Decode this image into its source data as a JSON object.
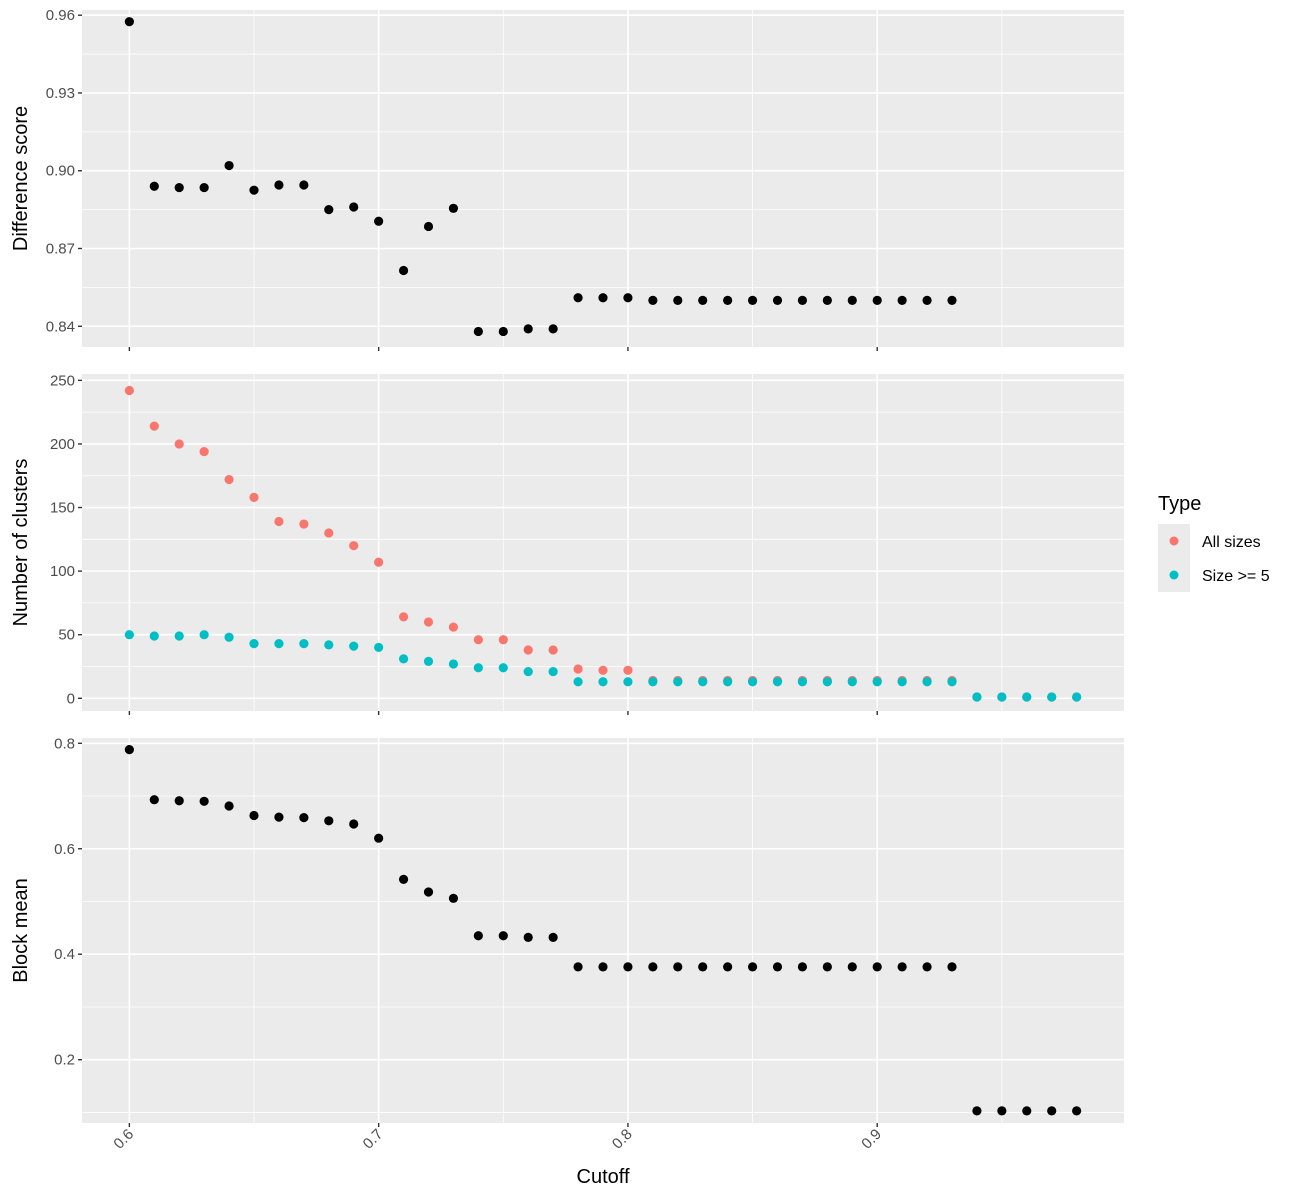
{
  "chart_data": {
    "type": "scatter",
    "xlabel": "Cutoff",
    "x_ticks": [
      "0.6",
      "0.7",
      "0.8",
      "0.9"
    ],
    "xlim": [
      0.581,
      0.999
    ],
    "grid": true,
    "legend": {
      "title": "Type",
      "placement": "right",
      "entries": [
        {
          "label": "All sizes",
          "color": "#F8766D"
        },
        {
          "label": "Size >= 5",
          "color": "#00BFC4"
        }
      ]
    },
    "panels": [
      {
        "ylabel": "Difference score",
        "ylim": [
          0.832,
          0.962
        ],
        "y_ticks": [
          "0.84",
          "0.87",
          "0.90",
          "0.93",
          "0.96"
        ],
        "series": [
          {
            "color": "#000000",
            "x": [
              0.6,
              0.61,
              0.62,
              0.63,
              0.64,
              0.65,
              0.66,
              0.67,
              0.68,
              0.69,
              0.7,
              0.71,
              0.72,
              0.73,
              0.74,
              0.75,
              0.76,
              0.77,
              0.78,
              0.79,
              0.8,
              0.81,
              0.82,
              0.83,
              0.84,
              0.85,
              0.86,
              0.87,
              0.88,
              0.89,
              0.9,
              0.91,
              0.92,
              0.93
            ],
            "y": [
              0.9575,
              0.894,
              0.8935,
              0.8935,
              0.902,
              0.8925,
              0.8945,
              0.8945,
              0.885,
              0.886,
              0.8805,
              0.8615,
              0.8785,
              0.8855,
              0.838,
              0.838,
              0.839,
              0.839,
              0.851,
              0.851,
              0.851,
              0.85,
              0.85,
              0.85,
              0.85,
              0.85,
              0.85,
              0.85,
              0.85,
              0.85,
              0.85,
              0.85,
              0.85,
              0.85
            ]
          }
        ]
      },
      {
        "ylabel": "Number of clusters",
        "ylim": [
          -10,
          255
        ],
        "y_ticks": [
          "0",
          "50",
          "100",
          "150",
          "200",
          "250"
        ],
        "series": [
          {
            "name": "All sizes",
            "color": "#F8766D",
            "x": [
              0.6,
              0.61,
              0.62,
              0.63,
              0.64,
              0.65,
              0.66,
              0.67,
              0.68,
              0.69,
              0.7,
              0.71,
              0.72,
              0.73,
              0.74,
              0.75,
              0.76,
              0.77,
              0.78,
              0.79,
              0.8,
              0.81,
              0.82,
              0.83,
              0.84,
              0.85,
              0.86,
              0.87,
              0.88,
              0.89,
              0.9,
              0.91,
              0.92,
              0.93,
              0.94,
              0.95,
              0.96,
              0.97,
              0.98
            ],
            "y": [
              242,
              214,
              200,
              194,
              172,
              158,
              139,
              137,
              130,
              120,
              107,
              64,
              60,
              56,
              46,
              46,
              38,
              38,
              23,
              22,
              22,
              14,
              14,
              14,
              14,
              14,
              14,
              14,
              14,
              14,
              14,
              14,
              14,
              14,
              1,
              1,
              1,
              1,
              1
            ]
          },
          {
            "name": "Size >= 5",
            "color": "#00BFC4",
            "x": [
              0.6,
              0.61,
              0.62,
              0.63,
              0.64,
              0.65,
              0.66,
              0.67,
              0.68,
              0.69,
              0.7,
              0.71,
              0.72,
              0.73,
              0.74,
              0.75,
              0.76,
              0.77,
              0.78,
              0.79,
              0.8,
              0.81,
              0.82,
              0.83,
              0.84,
              0.85,
              0.86,
              0.87,
              0.88,
              0.89,
              0.9,
              0.91,
              0.92,
              0.93,
              0.94,
              0.95,
              0.96,
              0.97,
              0.98
            ],
            "y": [
              50,
              49,
              49,
              50,
              48,
              43,
              43,
              43,
              42,
              41,
              40,
              31,
              29,
              27,
              24,
              24,
              21,
              21,
              13,
              13,
              13,
              13,
              13,
              13,
              13,
              13,
              13,
              13,
              13,
              13,
              13,
              13,
              13,
              13,
              1,
              1,
              1,
              1,
              1
            ]
          }
        ]
      },
      {
        "ylabel": "Block mean",
        "ylim": [
          0.08,
          0.81
        ],
        "y_ticks": [
          "0.2",
          "0.4",
          "0.6",
          "0.8"
        ],
        "series": [
          {
            "color": "#000000",
            "x": [
              0.6,
              0.61,
              0.62,
              0.63,
              0.64,
              0.65,
              0.66,
              0.67,
              0.68,
              0.69,
              0.7,
              0.71,
              0.72,
              0.73,
              0.74,
              0.75,
              0.76,
              0.77,
              0.78,
              0.79,
              0.8,
              0.81,
              0.82,
              0.83,
              0.84,
              0.85,
              0.86,
              0.87,
              0.88,
              0.89,
              0.9,
              0.91,
              0.92,
              0.93,
              0.94,
              0.95,
              0.96,
              0.97,
              0.98
            ],
            "y": [
              0.788,
              0.693,
              0.691,
              0.69,
              0.681,
              0.663,
              0.66,
              0.659,
              0.653,
              0.647,
              0.62,
              0.542,
              0.518,
              0.506,
              0.435,
              0.435,
              0.432,
              0.432,
              0.376,
              0.376,
              0.376,
              0.376,
              0.376,
              0.376,
              0.376,
              0.376,
              0.376,
              0.376,
              0.376,
              0.376,
              0.376,
              0.376,
              0.376,
              0.376,
              0.103,
              0.103,
              0.103,
              0.103,
              0.103
            ]
          }
        ]
      }
    ]
  }
}
